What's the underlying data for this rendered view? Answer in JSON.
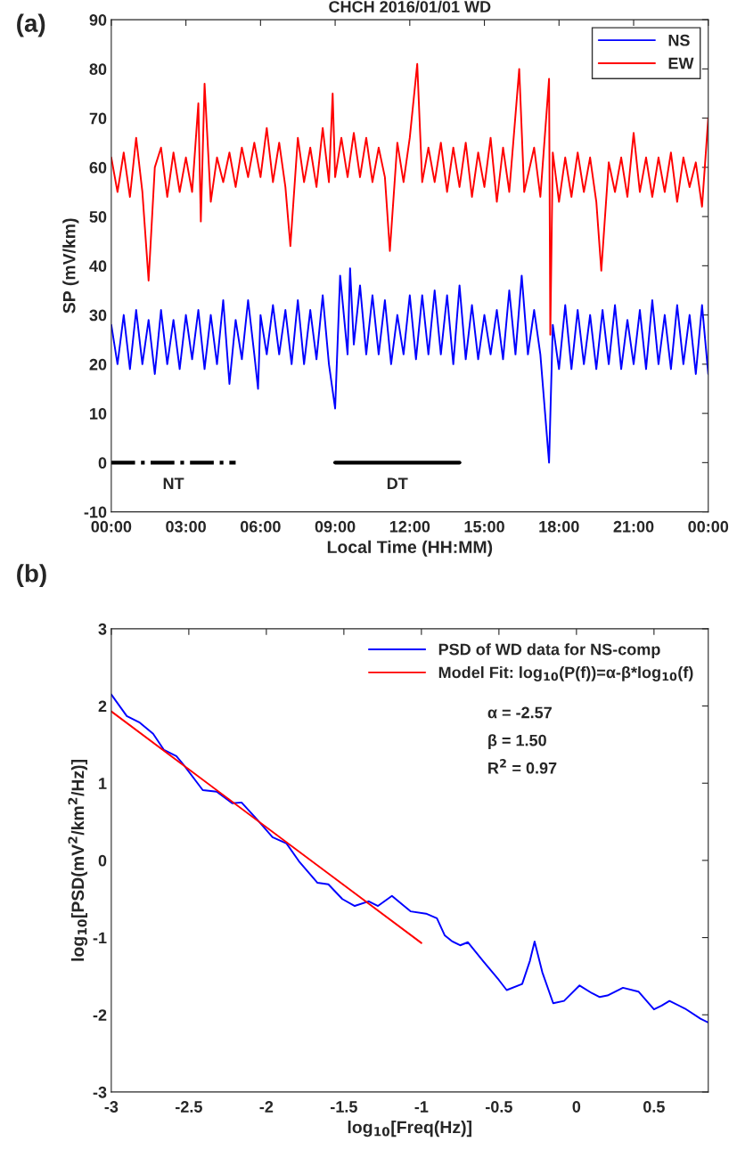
{
  "chart_data": [
    {
      "type": "line",
      "title": "CHCH 2016/01/01 WD",
      "xlabel": "Local Time (HH:MM)",
      "ylabel": "SP (mV/km)",
      "xlim": [
        0,
        24
      ],
      "xticks": [
        {
          "value": 0,
          "label": "00:00"
        },
        {
          "value": 3,
          "label": "03:00"
        },
        {
          "value": 6,
          "label": "06:00"
        },
        {
          "value": 9,
          "label": "09:00"
        },
        {
          "value": 12,
          "label": "12:00"
        },
        {
          "value": 15,
          "label": "15:00"
        },
        {
          "value": 18,
          "label": "18:00"
        },
        {
          "value": 21,
          "label": "21:00"
        },
        {
          "value": 24,
          "label": "00:00"
        }
      ],
      "ylim": [
        -10,
        90
      ],
      "yticks": [
        -10,
        0,
        10,
        20,
        30,
        40,
        50,
        60,
        70,
        80,
        90
      ],
      "grid": false,
      "legend": "top right",
      "series": [
        {
          "name": "NS",
          "color": "#0000ff",
          "x": [
            0,
            0.25,
            0.5,
            0.75,
            1,
            1.25,
            1.5,
            1.75,
            2,
            2.25,
            2.5,
            2.75,
            3,
            3.25,
            3.5,
            3.75,
            4,
            4.25,
            4.5,
            4.75,
            5,
            5.25,
            5.5,
            5.75,
            5.9,
            6,
            6.25,
            6.5,
            6.75,
            7,
            7.25,
            7.5,
            7.75,
            8,
            8.25,
            8.5,
            8.75,
            9,
            9.2,
            9.5,
            9.6,
            9.75,
            10,
            10.25,
            10.5,
            10.75,
            11,
            11.25,
            11.5,
            11.75,
            12,
            12.25,
            12.5,
            12.75,
            13,
            13.25,
            13.5,
            13.75,
            14,
            14.25,
            14.5,
            14.75,
            15,
            15.25,
            15.5,
            15.75,
            16,
            16.25,
            16.5,
            16.75,
            17,
            17.25,
            17.6,
            17.75,
            18,
            18.25,
            18.5,
            18.75,
            19,
            19.25,
            19.5,
            19.75,
            20,
            20.25,
            20.5,
            20.75,
            21,
            21.25,
            21.5,
            21.75,
            22,
            22.25,
            22.5,
            22.75,
            23,
            23.25,
            23.5,
            23.75,
            24
          ],
          "values": [
            28,
            20,
            30,
            19,
            31,
            20,
            29,
            18,
            31,
            20,
            29,
            19,
            30,
            21,
            31,
            19,
            30,
            20,
            33,
            16,
            29,
            21,
            33,
            22,
            15,
            30,
            22,
            32,
            22,
            31,
            20,
            33,
            20,
            31,
            21,
            34,
            20,
            11,
            38,
            22,
            39.5,
            24,
            36,
            22,
            34,
            22,
            33,
            20,
            30,
            22,
            34,
            21,
            34,
            22,
            35,
            22,
            34,
            20,
            36,
            21,
            32,
            21,
            30,
            22,
            31,
            21,
            35,
            22,
            38,
            22,
            31,
            22,
            0,
            28,
            19,
            32,
            19,
            31,
            20,
            30,
            19,
            31,
            20,
            32,
            19,
            29,
            20,
            31,
            19,
            33,
            20,
            30,
            19,
            32,
            20,
            30,
            18,
            32,
            18
          ]
        },
        {
          "name": "EW",
          "color": "#ff0000",
          "x": [
            0,
            0.25,
            0.5,
            0.75,
            1,
            1.25,
            1.5,
            1.75,
            2,
            2.25,
            2.5,
            2.75,
            3,
            3.25,
            3.5,
            3.6,
            3.75,
            4,
            4.25,
            4.5,
            4.75,
            5,
            5.25,
            5.5,
            5.75,
            6,
            6.25,
            6.5,
            6.75,
            7,
            7.2,
            7.5,
            7.75,
            8,
            8.25,
            8.5,
            8.75,
            8.9,
            9,
            9.25,
            9.5,
            9.75,
            10,
            10.25,
            10.5,
            10.75,
            11,
            11.2,
            11.5,
            11.75,
            12,
            12.3,
            12.5,
            12.75,
            13,
            13.25,
            13.5,
            13.75,
            14,
            14.25,
            14.5,
            14.75,
            15,
            15.25,
            15.5,
            15.75,
            16,
            16.4,
            16.6,
            17,
            17.25,
            17.6,
            17.65,
            17.75,
            18,
            18.25,
            18.5,
            18.75,
            19,
            19.25,
            19.5,
            19.7,
            20,
            20.25,
            20.5,
            20.75,
            21,
            21.25,
            21.5,
            21.75,
            22,
            22.25,
            22.5,
            22.75,
            23,
            23.25,
            23.5,
            23.75,
            24
          ],
          "values": [
            62,
            55,
            63,
            54,
            66,
            55,
            37,
            60,
            64,
            54,
            63,
            55,
            62,
            55,
            73,
            49,
            77,
            53,
            62,
            57,
            63,
            56,
            64,
            58,
            65,
            58,
            68,
            57,
            65,
            56,
            44,
            66,
            57,
            64,
            56,
            68,
            57,
            75,
            58,
            66,
            58,
            67,
            58,
            66,
            57,
            64,
            58,
            43,
            65,
            57,
            66,
            81,
            57,
            64,
            57,
            65,
            55,
            64,
            56,
            65,
            54,
            63,
            56,
            66,
            53,
            64,
            55,
            80,
            55,
            64,
            54,
            78,
            26,
            63,
            53,
            62,
            54,
            63,
            55,
            62,
            53,
            39,
            61,
            55,
            62,
            54,
            67,
            55,
            62,
            54,
            62,
            55,
            63,
            53,
            62,
            56,
            61,
            52,
            70
          ]
        },
        {
          "color": "#000000",
          "line_style": "dashdot",
          "x": [
            0,
            5
          ],
          "values": [
            0,
            0
          ]
        },
        {
          "color": "#000000",
          "line_style": "solid",
          "x": [
            9,
            14
          ],
          "values": [
            0,
            0
          ]
        }
      ],
      "annotations": [
        "(a)",
        "NT",
        "DT"
      ]
    },
    {
      "type": "line",
      "xlabel": "log$_{10}$[Freq(Hz)]",
      "ylabel": "log$_{10}$[PSD(mV$^{2}$/km$^{2}$/Hz)]",
      "xlim": [
        -3,
        0.85
      ],
      "xticks": [
        -3,
        -2.5,
        -2,
        -1.5,
        -1,
        -0.5,
        0,
        0.5
      ],
      "ylim": [
        -3,
        3
      ],
      "yticks": [
        -3,
        -2,
        -1,
        0,
        1,
        2,
        3
      ],
      "grid": false,
      "legend": "top right",
      "series": [
        {
          "name": "PSD of WD data for NS-comp",
          "color": "#0000ff",
          "x": [
            -3,
            -2.9,
            -2.82,
            -2.73,
            -2.66,
            -2.58,
            -2.53,
            -2.41,
            -2.32,
            -2.22,
            -2.16,
            -2.06,
            -1.96,
            -1.87,
            -1.79,
            -1.67,
            -1.6,
            -1.51,
            -1.43,
            -1.34,
            -1.28,
            -1.19,
            -1.07,
            -0.97,
            -0.9,
            -0.85,
            -0.8,
            -0.75,
            -0.7,
            -0.6,
            -0.5,
            -0.45,
            -0.35,
            -0.3,
            -0.27,
            -0.22,
            -0.15,
            -0.08,
            0.02,
            0.1,
            0.15,
            0.2,
            0.3,
            0.4,
            0.5,
            0.55,
            0.6,
            0.7,
            0.8,
            0.85
          ],
          "values": [
            2.15,
            1.87,
            1.79,
            1.64,
            1.43,
            1.35,
            1.23,
            0.91,
            0.89,
            0.74,
            0.75,
            0.53,
            0.3,
            0.22,
            -0.01,
            -0.29,
            -0.31,
            -0.5,
            -0.59,
            -0.53,
            -0.59,
            -0.46,
            -0.66,
            -0.69,
            -0.75,
            -0.97,
            -1.05,
            -1.1,
            -1.06,
            -1.31,
            -1.55,
            -1.68,
            -1.6,
            -1.3,
            -1.05,
            -1.45,
            -1.85,
            -1.82,
            -1.62,
            -1.72,
            -1.77,
            -1.75,
            -1.65,
            -1.7,
            -1.93,
            -1.88,
            -1.82,
            -1.92,
            -2.05,
            -2.1
          ]
        },
        {
          "name": "Model Fit: log$_{10}$(P(f))=α-β*log$_{10}$(f)",
          "color": "#ff0000",
          "x": [
            -3,
            -1
          ],
          "values": [
            1.93,
            -1.07
          ]
        }
      ],
      "annotations": [
        "(b)",
        "α = -2.57",
        "β = 1.50",
        "R$^{2}$ = 0.97"
      ]
    }
  ]
}
